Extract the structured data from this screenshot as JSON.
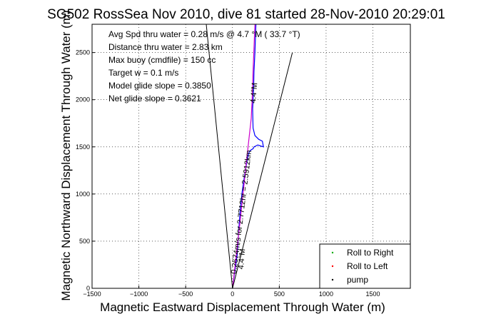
{
  "chart_data": {
    "type": "line",
    "title": "SG502 RossSea Nov 2010, dive 81 started 28-Nov-2010 20:29:01",
    "xlabel": "Magnetic Eastward Displacement Through Water (m)",
    "ylabel": "Magnetic Northward Displacement Through Water (m)",
    "xlim": [
      -1500,
      1900
    ],
    "ylim": [
      0,
      2800
    ],
    "xticks": [
      -1500,
      -1000,
      -500,
      0,
      500,
      1000,
      1500
    ],
    "yticks": [
      0,
      500,
      1000,
      1500,
      2000,
      2500
    ],
    "grid": true,
    "legend_position": "bottom-right",
    "stats": [
      "Avg Spd thru water =  0.28 m/s @   4.7   °M ( 33.7 °T)",
      "Distance thru water =  2.83 km",
      "Max buoy (cmdfile) = 150 cc",
      "Target w = 0.1 m/s",
      "Model glide slope = 0.3850",
      "Net glide slope = 0.3621"
    ],
    "annotations": {
      "segment1": "0.2674m/s for 2.7712hr = 2.5912km",
      "heading1": "4.4°M",
      "heading2": "4.4°M"
    },
    "legend": [
      {
        "label": "Roll to Right",
        "color": "#00aa00"
      },
      {
        "label": "Roll to Left",
        "color": "#ff0000"
      },
      {
        "label": "pump",
        "color": "#000000"
      }
    ],
    "series": [
      {
        "color": "#0000ff",
        "x": [
          0,
          20,
          50,
          60,
          80,
          100,
          130,
          160,
          180,
          200,
          220,
          230,
          250,
          270,
          300,
          330,
          320,
          280,
          240,
          220,
          215,
          225,
          230,
          240,
          250
        ],
        "y": [
          0,
          150,
          350,
          500,
          800,
          1000,
          1200,
          1380,
          1450,
          1470,
          1480,
          1500,
          1510,
          1520,
          1510,
          1500,
          1560,
          1580,
          1620,
          1700,
          1900,
          2100,
          2300,
          2500,
          2800
        ]
      },
      {
        "color": "#cc00cc",
        "x": [
          0,
          80,
          150,
          200,
          210,
          220,
          240
        ],
        "y": [
          0,
          700,
          1350,
          1800,
          2000,
          2300,
          2800
        ]
      },
      {
        "color": "#000000",
        "x": [
          -280,
          0,
          640
        ],
        "y": [
          2800,
          0,
          2500
        ]
      }
    ]
  }
}
